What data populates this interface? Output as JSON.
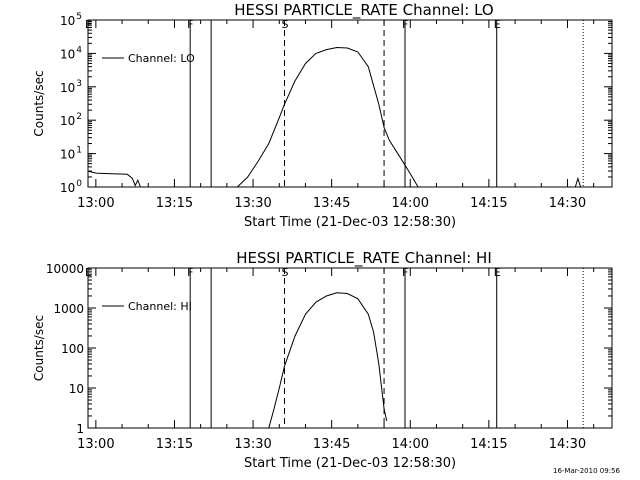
{
  "footer": {
    "timestamp": "16-Mar-2010 09:56"
  },
  "colors": {
    "background": "#ffffff",
    "ink": "#000000"
  },
  "chart_data": [
    {
      "type": "line",
      "title": "HESSI PARTICLE_RATE Channel: LO",
      "xlabel": "Start Time (21-Dec-03 12:58:30)",
      "ylabel": "Counts/sec",
      "yscale": "log",
      "xlim": [
        "12:58:30",
        "14:38:30"
      ],
      "ylim": [
        1,
        100000
      ],
      "x_ticks": [
        "13:00",
        "13:15",
        "13:30",
        "13:45",
        "14:00",
        "14:15",
        "14:30"
      ],
      "y_ticks": [
        {
          "base": "10",
          "exp": "0",
          "value": 1
        },
        {
          "base": "10",
          "exp": "1",
          "value": 10
        },
        {
          "base": "10",
          "exp": "2",
          "value": 100
        },
        {
          "base": "10",
          "exp": "3",
          "value": 1000
        },
        {
          "base": "10",
          "exp": "4",
          "value": 10000
        },
        {
          "base": "10",
          "exp": "5",
          "value": 100000
        }
      ],
      "legend": {
        "position": "top-left",
        "label": "Channel: LO"
      },
      "markers": [
        {
          "label": "E",
          "time": "12:58:30",
          "style": "solid"
        },
        {
          "label": "F",
          "time": "13:18:00",
          "style": "solid"
        },
        {
          "label": "",
          "time": "13:22:00",
          "style": "solid"
        },
        {
          "label": "S",
          "time": "13:36:00",
          "style": "dashed"
        },
        {
          "label": "",
          "time": "13:55:00",
          "style": "dashed"
        },
        {
          "label": "F",
          "time": "13:59:00",
          "style": "solid"
        },
        {
          "label": "E",
          "time": "14:16:30",
          "style": "solid"
        },
        {
          "label": "",
          "time": "14:33:00",
          "style": "dotted"
        }
      ],
      "series": [
        {
          "name": "Channel: LO",
          "segments": [
            [
              [
                "12:58:30",
                3.0
              ],
              [
                "13:00:00",
                2.6
              ],
              [
                "13:03:00",
                2.5
              ],
              [
                "13:06:00",
                2.4
              ],
              [
                "13:07:00",
                1.8
              ],
              [
                "13:07:30",
                1.1
              ],
              [
                "13:08:00",
                1.6
              ],
              [
                "13:08:30",
                1.0
              ]
            ],
            [
              [
                "13:27:00",
                1.0
              ],
              [
                "13:29:00",
                2.0
              ],
              [
                "13:31:00",
                6
              ],
              [
                "13:33:00",
                20
              ],
              [
                "13:35:00",
                120
              ],
              [
                "13:36:00",
                300
              ],
              [
                "13:38:00",
                1500
              ],
              [
                "13:40:00",
                5000
              ],
              [
                "13:42:00",
                10000
              ],
              [
                "13:44:00",
                13000
              ],
              [
                "13:46:00",
                15000
              ],
              [
                "13:48:00",
                14500
              ],
              [
                "13:50:00",
                11000
              ],
              [
                "13:52:00",
                4000
              ],
              [
                "13:54:00",
                300
              ],
              [
                "13:55:00",
                60
              ],
              [
                "13:56:00",
                25
              ],
              [
                "13:58:00",
                8
              ],
              [
                "14:00:00",
                2.5
              ],
              [
                "14:01:30",
                1.0
              ]
            ],
            [
              [
                "14:31:30",
                1.0
              ],
              [
                "14:32:00",
                1.8
              ],
              [
                "14:32:30",
                1.0
              ]
            ]
          ]
        }
      ]
    },
    {
      "type": "line",
      "title": "HESSI PARTICLE_RATE Channel: HI",
      "xlabel": "Start Time (21-Dec-03 12:58:30)",
      "ylabel": "Counts/sec",
      "yscale": "log",
      "xlim": [
        "12:58:30",
        "14:38:30"
      ],
      "ylim": [
        1,
        10000
      ],
      "x_ticks": [
        "13:00",
        "13:15",
        "13:30",
        "13:45",
        "14:00",
        "14:15",
        "14:30"
      ],
      "y_ticks": [
        {
          "label": "1",
          "value": 1
        },
        {
          "label": "10",
          "value": 10
        },
        {
          "label": "100",
          "value": 100
        },
        {
          "label": "1000",
          "value": 1000
        },
        {
          "label": "10000",
          "value": 10000
        }
      ],
      "legend": {
        "position": "top-left",
        "label": "Channel: HI"
      },
      "markers": [
        {
          "label": "E",
          "time": "12:58:30",
          "style": "solid"
        },
        {
          "label": "F",
          "time": "13:18:00",
          "style": "solid"
        },
        {
          "label": "",
          "time": "13:22:00",
          "style": "solid"
        },
        {
          "label": "S",
          "time": "13:36:00",
          "style": "dashed"
        },
        {
          "label": "",
          "time": "13:55:00",
          "style": "dashed"
        },
        {
          "label": "F",
          "time": "13:59:00",
          "style": "solid"
        },
        {
          "label": "E",
          "time": "14:16:30",
          "style": "solid"
        },
        {
          "label": "",
          "time": "14:33:00",
          "style": "dotted"
        }
      ],
      "series": [
        {
          "name": "Channel: HI",
          "segments": [
            [
              [
                "13:33:00",
                1.0
              ],
              [
                "13:34:00",
                3
              ],
              [
                "13:35:00",
                10
              ],
              [
                "13:36:00",
                35
              ],
              [
                "13:38:00",
                200
              ],
              [
                "13:40:00",
                700
              ],
              [
                "13:42:00",
                1400
              ],
              [
                "13:44:00",
                2000
              ],
              [
                "13:46:00",
                2400
              ],
              [
                "13:48:00",
                2300
              ],
              [
                "13:50:00",
                1700
              ],
              [
                "13:52:00",
                700
              ],
              [
                "13:53:00",
                250
              ],
              [
                "13:54:00",
                40
              ],
              [
                "13:55:00",
                3
              ],
              [
                "13:55:30",
                1.5
              ]
            ]
          ]
        }
      ]
    }
  ]
}
